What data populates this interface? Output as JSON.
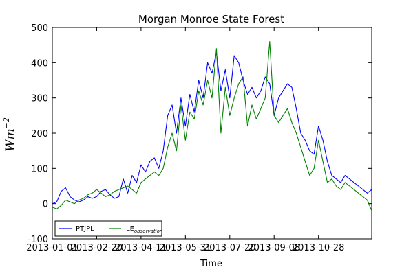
{
  "chart_data": {
    "type": "line",
    "title": "Morgan Monroe State Forest",
    "xlabel": "Time",
    "ylabel": "Wm",
    "ylabel_exponent": "−2",
    "ylim": [
      -100,
      500
    ],
    "yticks": [
      -100,
      0,
      100,
      200,
      300,
      400,
      500
    ],
    "xlim": [
      0,
      360
    ],
    "xtick_labels": [
      "2013-01-01",
      "2013-02-20",
      "2013-04-11",
      "2013-05-31",
      "2013-07-20",
      "2013-09-08",
      "2013-10-28"
    ],
    "xtick_values": [
      0,
      50,
      100,
      150,
      200,
      250,
      300
    ],
    "legend_position": "lower-left",
    "series": [
      {
        "name": "PTJPL",
        "color": "#0000ff",
        "x": [
          0,
          5,
          10,
          15,
          20,
          25,
          30,
          35,
          40,
          45,
          50,
          55,
          60,
          65,
          70,
          75,
          80,
          85,
          90,
          95,
          100,
          105,
          110,
          115,
          120,
          125,
          130,
          135,
          140,
          145,
          150,
          155,
          160,
          165,
          170,
          175,
          180,
          185,
          190,
          195,
          200,
          205,
          210,
          215,
          220,
          225,
          230,
          235,
          240,
          245,
          250,
          255,
          260,
          265,
          270,
          275,
          280,
          285,
          290,
          295,
          300,
          305,
          310,
          315,
          320,
          325,
          330,
          335,
          340,
          345,
          350,
          355,
          360
        ],
        "y": [
          0,
          5,
          35,
          45,
          20,
          10,
          5,
          10,
          20,
          15,
          20,
          35,
          40,
          25,
          15,
          20,
          70,
          30,
          80,
          60,
          110,
          90,
          120,
          130,
          100,
          150,
          250,
          280,
          200,
          300,
          220,
          310,
          260,
          350,
          300,
          400,
          370,
          430,
          320,
          380,
          300,
          420,
          400,
          350,
          310,
          330,
          300,
          320,
          360,
          340,
          250,
          300,
          320,
          340,
          330,
          270,
          200,
          180,
          150,
          140,
          220,
          180,
          120,
          80,
          70,
          60,
          80,
          70,
          60,
          50,
          40,
          30,
          40
        ]
      },
      {
        "name": "LE",
        "name_subscript": "observation",
        "color": "#008000",
        "x": [
          0,
          5,
          10,
          15,
          20,
          25,
          30,
          35,
          40,
          45,
          50,
          55,
          60,
          65,
          70,
          75,
          80,
          85,
          90,
          95,
          100,
          105,
          110,
          115,
          120,
          125,
          130,
          135,
          140,
          145,
          150,
          155,
          160,
          165,
          170,
          175,
          180,
          185,
          190,
          195,
          200,
          205,
          210,
          215,
          220,
          225,
          230,
          235,
          240,
          245,
          250,
          255,
          260,
          265,
          270,
          275,
          280,
          285,
          290,
          295,
          300,
          305,
          310,
          315,
          320,
          325,
          330,
          335,
          340,
          345,
          350,
          355,
          360
        ],
        "y": [
          -10,
          -15,
          -5,
          10,
          5,
          0,
          10,
          15,
          25,
          30,
          40,
          30,
          20,
          25,
          35,
          40,
          45,
          50,
          40,
          30,
          60,
          70,
          80,
          90,
          80,
          100,
          160,
          200,
          150,
          280,
          180,
          260,
          240,
          320,
          280,
          350,
          300,
          440,
          200,
          330,
          250,
          300,
          340,
          360,
          220,
          280,
          240,
          270,
          300,
          460,
          250,
          230,
          250,
          270,
          230,
          200,
          160,
          120,
          80,
          100,
          180,
          120,
          60,
          70,
          50,
          40,
          60,
          50,
          40,
          30,
          20,
          10,
          -20
        ]
      }
    ]
  }
}
